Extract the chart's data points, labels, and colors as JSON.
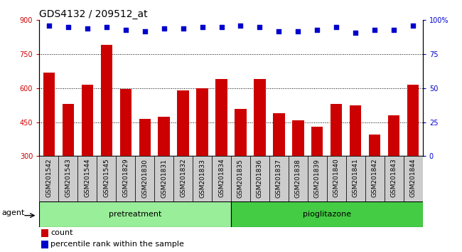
{
  "title": "GDS4132 / 209512_at",
  "samples": [
    "GSM201542",
    "GSM201543",
    "GSM201544",
    "GSM201545",
    "GSM201829",
    "GSM201830",
    "GSM201831",
    "GSM201832",
    "GSM201833",
    "GSM201834",
    "GSM201835",
    "GSM201836",
    "GSM201837",
    "GSM201838",
    "GSM201839",
    "GSM201840",
    "GSM201841",
    "GSM201842",
    "GSM201843",
    "GSM201844"
  ],
  "bar_values": [
    670,
    530,
    615,
    790,
    595,
    465,
    475,
    590,
    600,
    640,
    510,
    640,
    490,
    460,
    430,
    530,
    525,
    395,
    480,
    615
  ],
  "bar_color": "#cc0000",
  "percentile_values": [
    96,
    95,
    94,
    95,
    93,
    92,
    94,
    94,
    95,
    95,
    96,
    95,
    92,
    92,
    93,
    95,
    91,
    93,
    93,
    96
  ],
  "percentile_color": "#0000cc",
  "ylim_left": [
    300,
    900
  ],
  "ylim_right": [
    0,
    100
  ],
  "yticks_left": [
    300,
    450,
    600,
    750,
    900
  ],
  "yticks_right": [
    0,
    25,
    50,
    75,
    100
  ],
  "grid_values": [
    450,
    600,
    750
  ],
  "n_pretreatment": 10,
  "n_pioglitazone": 10,
  "pretreatment_color": "#99ee99",
  "pioglitazone_color": "#44cc44",
  "cell_color": "#cccccc",
  "agent_label": "agent",
  "pretreatment_label": "pretreatment",
  "pioglitazone_label": "pioglitazone",
  "legend_count_label": "count",
  "legend_pct_label": "percentile rank within the sample",
  "bar_width": 0.6,
  "title_fontsize": 10,
  "tick_fontsize": 7,
  "label_fontsize": 8,
  "sample_fontsize": 6.5
}
